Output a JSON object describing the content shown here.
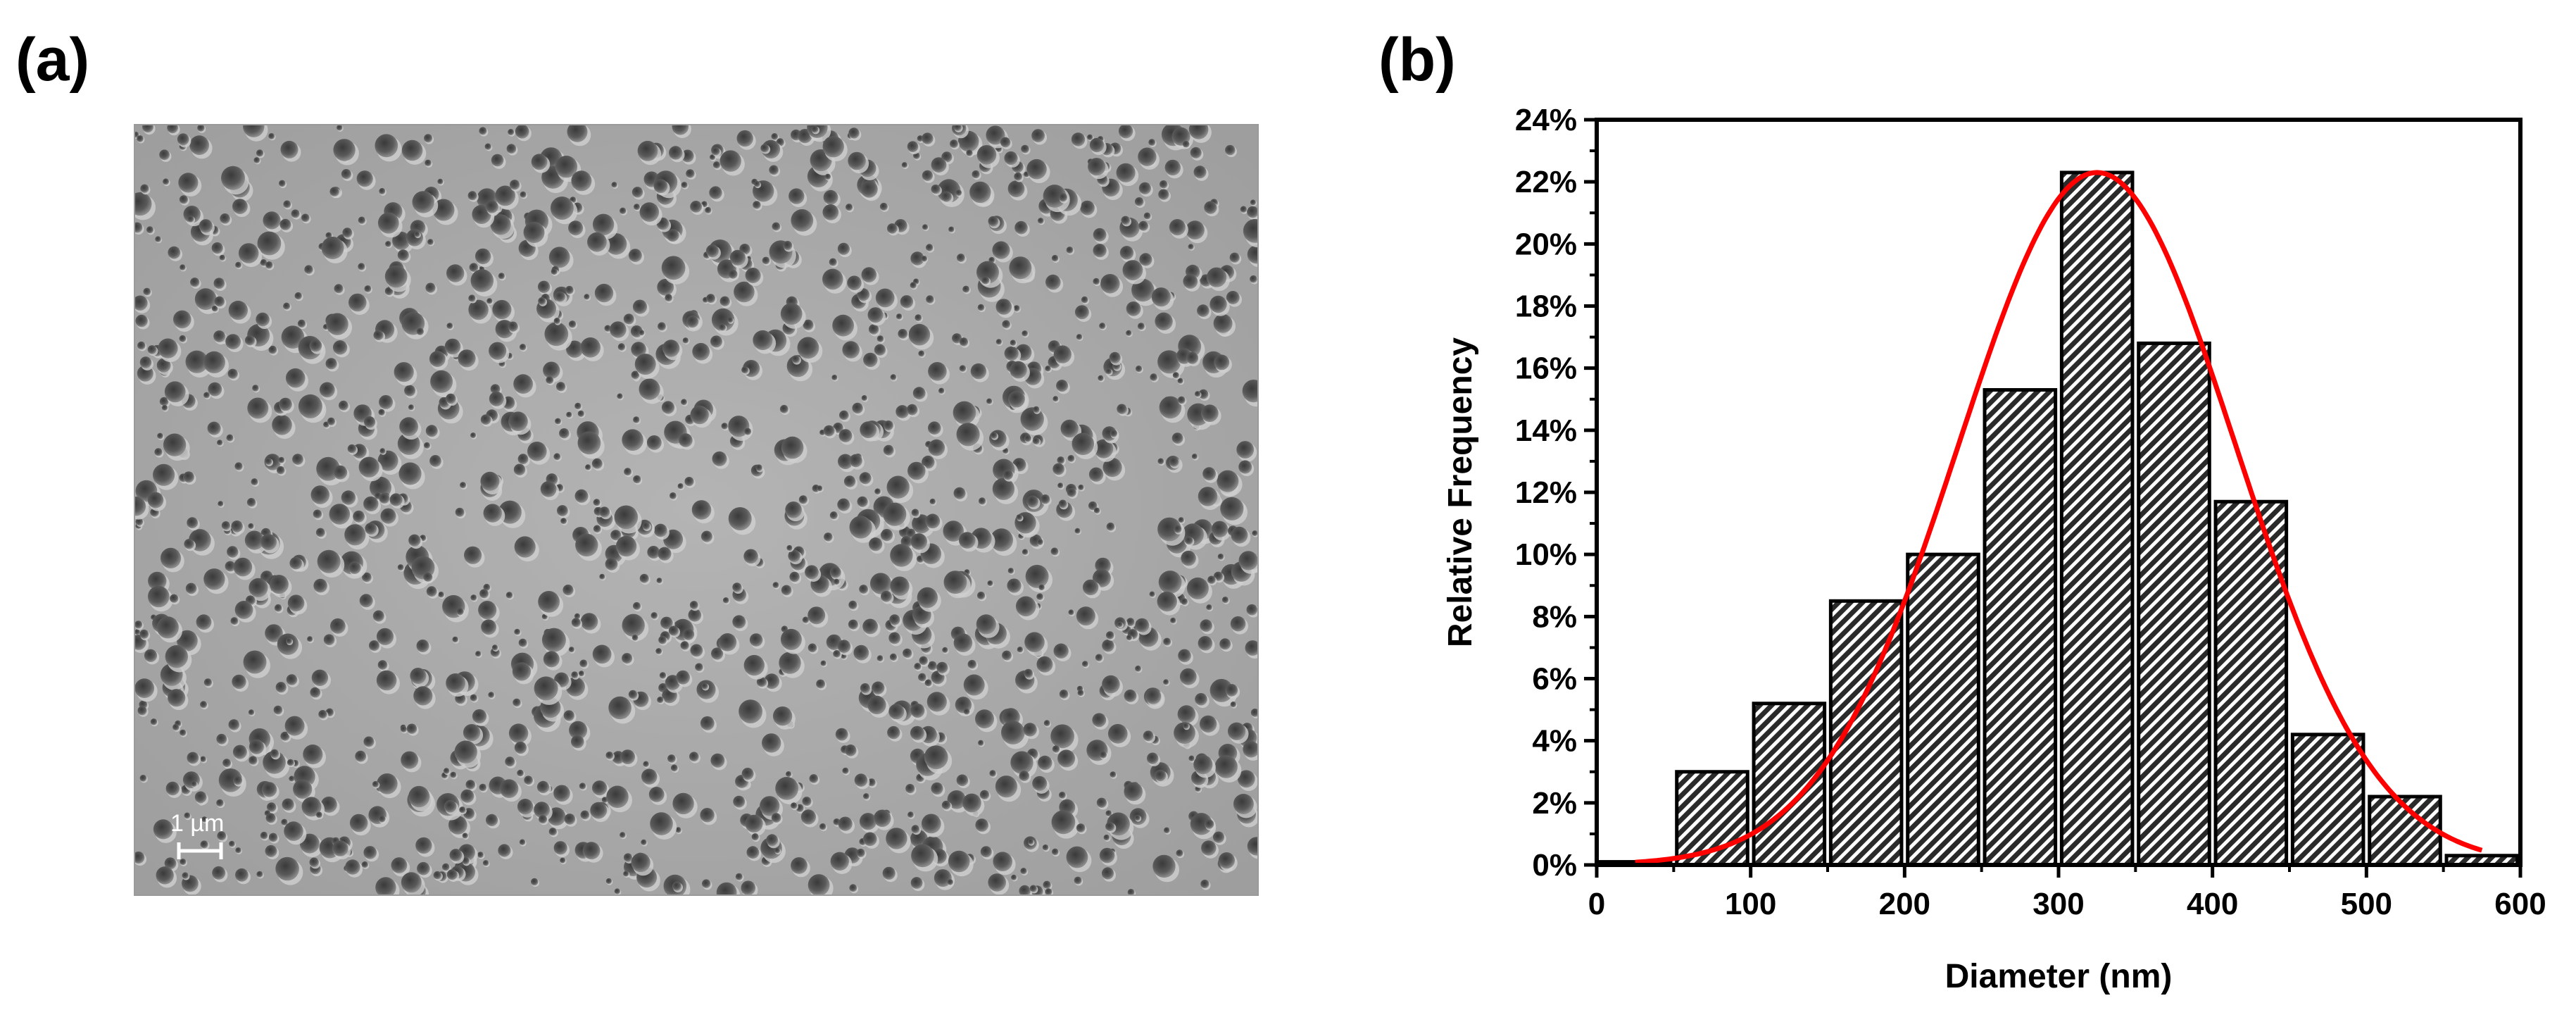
{
  "panels": {
    "a_label": "(a)",
    "b_label": "(b)"
  },
  "micrograph": {
    "scale_bar_label": "1 µm"
  },
  "chart_data": {
    "type": "bar",
    "title": "",
    "xlabel": "Diameter (nm)",
    "ylabel": "Relative Frequency",
    "xlim": [
      0,
      600
    ],
    "ylim": [
      0,
      24
    ],
    "x_ticks": [
      0,
      100,
      200,
      300,
      400,
      500,
      600
    ],
    "y_ticks": [
      0,
      2,
      4,
      6,
      8,
      10,
      12,
      14,
      16,
      18,
      20,
      22,
      24
    ],
    "y_tick_suffix": "%",
    "grid": false,
    "legend": "none",
    "bin_width": 50,
    "bins": [
      25,
      75,
      125,
      175,
      225,
      275,
      325,
      375,
      425,
      475,
      525,
      575
    ],
    "values": [
      0.1,
      3.0,
      5.2,
      8.5,
      10.0,
      15.3,
      22.3,
      16.8,
      11.7,
      4.2,
      2.2,
      0.3
    ],
    "fit_curve": {
      "type": "gaussian",
      "center": 325,
      "sigma": 90,
      "amplitude": 22.3,
      "x_range": [
        25,
        575
      ]
    },
    "colors": {
      "bar_fill": "#2a2a2a",
      "bar_hatch": "#ffffff",
      "fit_line": "#ff0000"
    }
  }
}
